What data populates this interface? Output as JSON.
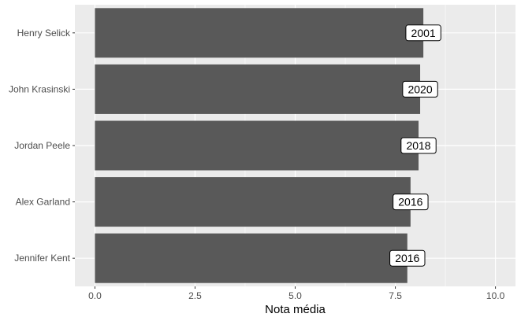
{
  "chart_data": {
    "type": "bar",
    "orientation": "horizontal",
    "categories": [
      "Henry Selick",
      "John Krasinski",
      "Jordan Peele",
      "Alex Garland",
      "Jennifer Kent"
    ],
    "values": [
      8.2,
      8.12,
      8.08,
      7.88,
      7.8
    ],
    "data_labels": [
      "2001",
      "2020",
      "2018",
      "2016",
      "2016"
    ],
    "xlabel": "Nota média",
    "ylabel": "",
    "title": "",
    "xlim": [
      -0.5,
      10.5
    ],
    "x_ticks": [
      0,
      2.5,
      5,
      7.5,
      10
    ],
    "x_tick_labels": [
      "0.0",
      "2.5",
      "5.0",
      "7.5",
      "10.0"
    ],
    "grid": true,
    "legend": "none",
    "colors": {
      "bar": "#595959",
      "panel_background": "#ebebeb",
      "grid_major": "#ffffff",
      "label_box_fill": "#ffffff",
      "label_box_border": "#000000"
    }
  }
}
